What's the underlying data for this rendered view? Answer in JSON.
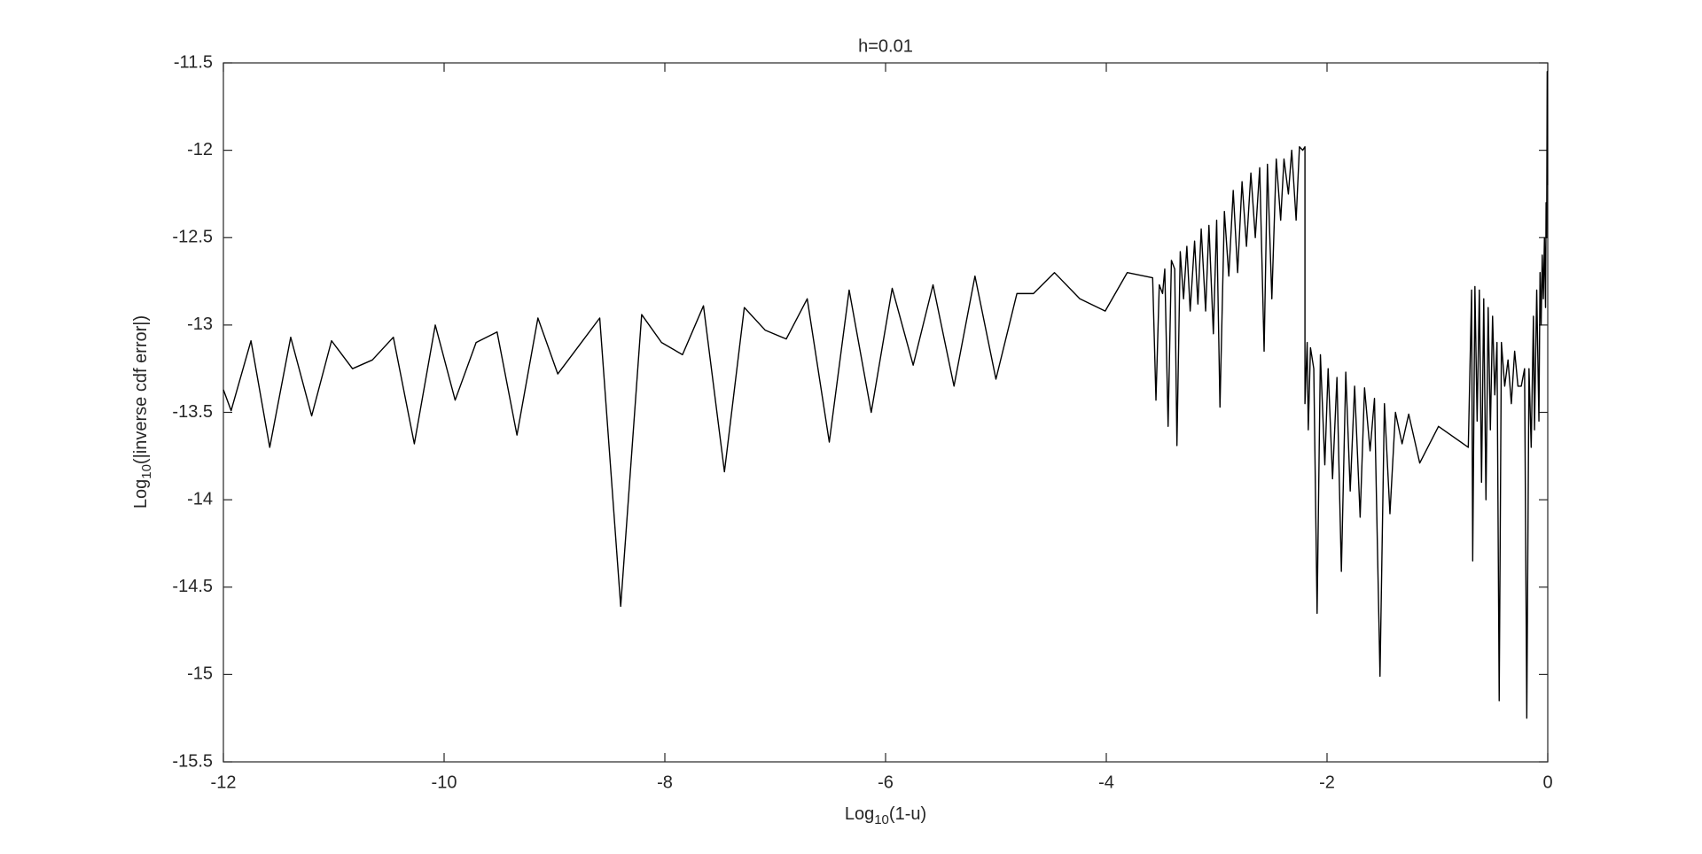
{
  "chart_data": {
    "type": "line",
    "title": "h=0.01",
    "x_label": [
      "Log",
      "10",
      "(1-u)"
    ],
    "y_label": [
      "Log",
      "10",
      "(|inverse cdf error|)"
    ],
    "xlim": [
      -12,
      0
    ],
    "ylim": [
      -15.5,
      -11.5
    ],
    "xticks": [
      -12,
      -10,
      -8,
      -6,
      -4,
      -2,
      0
    ],
    "yticks": [
      -11.5,
      -12,
      -12.5,
      -13,
      -13.5,
      -14,
      -14.5,
      -15,
      -15.5
    ],
    "grid": false,
    "series": [
      {
        "color": "#000000",
        "x": [
          -12,
          -11.93,
          -11.75,
          -11.58,
          -11.39,
          -11.2,
          -11.02,
          -10.83,
          -10.65,
          -10.46,
          -10.27,
          -10.08,
          -9.9,
          -9.71,
          -9.52,
          -9.34,
          -9.15,
          -8.97,
          -8.78,
          -8.59,
          -8.4,
          -8.21,
          -8.03,
          -7.84,
          -7.65,
          -7.46,
          -7.28,
          -7.09,
          -6.9,
          -6.71,
          -6.51,
          -6.33,
          -6.13,
          -5.94,
          -5.75,
          -5.57,
          -5.38,
          -5.19,
          -5.0,
          -4.81,
          -4.66,
          -4.47,
          -4.24,
          -4.01,
          -3.81,
          -3.58,
          -3.55,
          -3.52,
          -3.49,
          -3.47,
          -3.44,
          -3.41,
          -3.38,
          -3.36,
          -3.33,
          -3.3,
          -3.27,
          -3.24,
          -3.2,
          -3.17,
          -3.14,
          -3.1,
          -3.07,
          -3.03,
          -3.0,
          -2.97,
          -2.93,
          -2.89,
          -2.85,
          -2.81,
          -2.77,
          -2.73,
          -2.69,
          -2.65,
          -2.61,
          -2.57,
          -2.54,
          -2.5,
          -2.46,
          -2.42,
          -2.39,
          -2.35,
          -2.32,
          -2.28,
          -2.25,
          -2.22,
          -2.2,
          -2.2,
          -2.18,
          -2.17,
          -2.15,
          -2.12,
          -2.09,
          -2.06,
          -2.02,
          -1.99,
          -1.95,
          -1.91,
          -1.87,
          -1.83,
          -1.79,
          -1.75,
          -1.7,
          -1.66,
          -1.61,
          -1.57,
          -1.52,
          -1.48,
          -1.43,
          -1.38,
          -1.32,
          -1.26,
          -1.16,
          -0.99,
          -0.72,
          -0.69,
          -0.68,
          -0.66,
          -0.64,
          -0.62,
          -0.6,
          -0.58,
          -0.56,
          -0.54,
          -0.52,
          -0.5,
          -0.48,
          -0.46,
          -0.44,
          -0.42,
          -0.39,
          -0.36,
          -0.33,
          -0.3,
          -0.27,
          -0.24,
          -0.21,
          -0.19,
          -0.17,
          -0.15,
          -0.13,
          -0.12,
          -0.1,
          -0.08,
          -0.07,
          -0.06,
          -0.05,
          -0.04,
          -0.03,
          -0.02,
          -0.015,
          -0.01,
          -0.005,
          -0.002
        ],
        "values": [
          -13.37,
          -13.49,
          -13.09,
          -13.7,
          -13.07,
          -13.52,
          -13.09,
          -13.25,
          -13.2,
          -13.07,
          -13.68,
          -13.0,
          -13.43,
          -13.1,
          -13.04,
          -13.63,
          -12.96,
          -13.28,
          -13.12,
          -12.96,
          -14.61,
          -12.94,
          -13.1,
          -13.17,
          -12.89,
          -13.84,
          -12.9,
          -13.03,
          -13.08,
          -12.85,
          -13.67,
          -12.8,
          -13.5,
          -12.79,
          -13.23,
          -12.77,
          -13.35,
          -12.72,
          -13.31,
          -12.82,
          -12.82,
          -12.7,
          -12.85,
          -12.92,
          -12.7,
          -12.73,
          -13.43,
          -12.77,
          -12.82,
          -12.68,
          -13.58,
          -12.63,
          -12.68,
          -13.69,
          -12.58,
          -12.85,
          -12.55,
          -12.92,
          -12.52,
          -12.88,
          -12.45,
          -12.92,
          -12.43,
          -13.05,
          -12.4,
          -13.47,
          -12.35,
          -12.72,
          -12.23,
          -12.7,
          -12.18,
          -12.55,
          -12.13,
          -12.5,
          -12.1,
          -13.15,
          -12.08,
          -12.85,
          -12.05,
          -12.4,
          -12.05,
          -12.25,
          -12.0,
          -12.4,
          -11.98,
          -12.0,
          -11.98,
          -13.45,
          -13.1,
          -13.6,
          -13.13,
          -13.25,
          -14.65,
          -13.17,
          -13.8,
          -13.25,
          -13.88,
          -13.3,
          -14.41,
          -13.27,
          -13.95,
          -13.35,
          -14.1,
          -13.36,
          -13.72,
          -13.42,
          -15.01,
          -13.45,
          -14.08,
          -13.5,
          -13.68,
          -13.51,
          -13.79,
          -13.58,
          -13.7,
          -12.8,
          -14.35,
          -12.78,
          -13.55,
          -12.8,
          -13.9,
          -12.85,
          -14.0,
          -12.9,
          -13.6,
          -12.95,
          -13.4,
          -13.1,
          -15.15,
          -13.1,
          -13.35,
          -13.2,
          -13.45,
          -13.15,
          -13.35,
          -13.35,
          -13.25,
          -15.25,
          -13.25,
          -13.7,
          -12.95,
          -13.6,
          -12.8,
          -13.55,
          -12.7,
          -13.0,
          -12.6,
          -12.85,
          -12.5,
          -12.9,
          -12.3,
          -12.5,
          -11.55,
          -12.2
        ]
      }
    ]
  }
}
